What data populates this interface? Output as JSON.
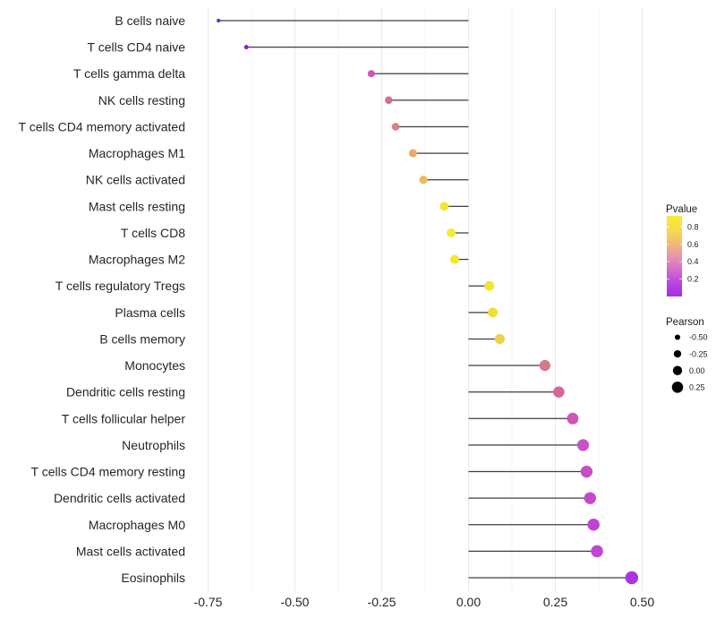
{
  "chart_data": {
    "type": "scatter",
    "subtype": "lollipop",
    "title": "",
    "xlabel": "",
    "ylabel": "",
    "grid": true,
    "background": "#ffffff",
    "xlim": [
      -0.8,
      0.56
    ],
    "x_tick_labels": [
      "-0.75",
      "-0.50",
      "-0.25",
      "0.00",
      "0.25",
      "0.50"
    ],
    "x_tick_values": [
      -0.75,
      -0.5,
      -0.25,
      0,
      0.25,
      0.5
    ],
    "x_minor_values": [
      -0.625,
      -0.375,
      -0.125,
      0.125,
      0.375
    ],
    "stem_color": "#3d3d3d",
    "major_grid_color": "#e9e9e9",
    "minor_grid_color": "#f4f4f4",
    "axis_text_color": "#262626",
    "points": [
      {
        "label": "B cells naive",
        "pearson": -0.72,
        "pvalue": 0.001,
        "color": "#7329d1"
      },
      {
        "label": "T cells CD4 naive",
        "pearson": -0.64,
        "pvalue": 0.01,
        "color": "#8f1bdb"
      },
      {
        "label": "T cells gamma delta",
        "pearson": -0.28,
        "pvalue": 0.24,
        "color": "#cb58b8"
      },
      {
        "label": "NK cells resting",
        "pearson": -0.23,
        "pvalue": 0.33,
        "color": "#d06f96"
      },
      {
        "label": "T cells CD4 memory activated",
        "pearson": -0.21,
        "pvalue": 0.38,
        "color": "#d97f86"
      },
      {
        "label": "Macrophages M1",
        "pearson": -0.16,
        "pvalue": 0.53,
        "color": "#eda96b"
      },
      {
        "label": "NK cells activated",
        "pearson": -0.13,
        "pvalue": 0.58,
        "color": "#eeba60"
      },
      {
        "label": "Mast cells resting",
        "pearson": -0.07,
        "pvalue": 0.78,
        "color": "#f3e52f"
      },
      {
        "label": "T cells CD8",
        "pearson": -0.05,
        "pvalue": 0.82,
        "color": "#f5ea2e"
      },
      {
        "label": "Macrophages M2",
        "pearson": -0.04,
        "pvalue": 0.81,
        "color": "#f5e72e"
      },
      {
        "label": "T cells regulatory  Tregs",
        "pearson": 0.06,
        "pvalue": 0.79,
        "color": "#f3e52e"
      },
      {
        "label": "Plasma cells",
        "pearson": 0.07,
        "pvalue": 0.74,
        "color": "#f1df35"
      },
      {
        "label": "B cells memory",
        "pearson": 0.09,
        "pvalue": 0.66,
        "color": "#edd04c"
      },
      {
        "label": "Monocytes",
        "pearson": 0.22,
        "pvalue": 0.36,
        "color": "#d7798a"
      },
      {
        "label": "Dendritic cells resting",
        "pearson": 0.26,
        "pvalue": 0.3,
        "color": "#d4689e"
      },
      {
        "label": "T cells follicular helper",
        "pearson": 0.3,
        "pvalue": 0.23,
        "color": "#cd55b5"
      },
      {
        "label": "Neutrophils",
        "pearson": 0.33,
        "pvalue": 0.19,
        "color": "#c953c6"
      },
      {
        "label": "T cells CD4 memory resting",
        "pearson": 0.34,
        "pvalue": 0.18,
        "color": "#c84ec3"
      },
      {
        "label": "Dendritic cells activated",
        "pearson": 0.35,
        "pvalue": 0.16,
        "color": "#c648cb"
      },
      {
        "label": "Macrophages M0",
        "pearson": 0.36,
        "pvalue": 0.14,
        "color": "#c243d3"
      },
      {
        "label": "Mast cells activated",
        "pearson": 0.37,
        "pvalue": 0.13,
        "color": "#bf47d4"
      },
      {
        "label": "Eosinophils",
        "pearson": 0.47,
        "pvalue": 0.06,
        "color": "#ab35e2"
      }
    ],
    "legend_pvalue": {
      "title": "Pvalue",
      "tick_labels": [
        "0.8",
        "0.6",
        "0.4",
        "0.2"
      ],
      "tick_values": [
        0.8,
        0.6,
        0.4,
        0.2
      ],
      "gradient_top_to_bottom": [
        "#f8eb3a",
        "#f7dd4b",
        "#f2bb72",
        "#e596ae",
        "#d66dcb",
        "#bb44dd",
        "#a62fe3"
      ]
    },
    "legend_pearson": {
      "title": "Pearson",
      "dot_color": "#000000",
      "sizes": [
        {
          "label": "-0.50",
          "value": -0.5
        },
        {
          "label": "-0.25",
          "value": -0.25
        },
        {
          "label": "0.00",
          "value": 0
        },
        {
          "label": "0.25",
          "value": 0.25
        }
      ]
    }
  }
}
